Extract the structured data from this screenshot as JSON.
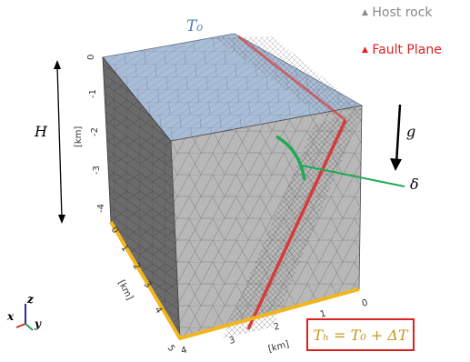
{
  "legend": {
    "host_rock": {
      "marker": "▲",
      "label": "Host rock",
      "color": "#8a8a8a"
    },
    "fault_plane": {
      "marker": "▲",
      "label": "Fault Plane",
      "color": "#e02020"
    }
  },
  "labels": {
    "top_temperature": "T₀",
    "height": "H",
    "gravity": "g",
    "dip_angle": "δ",
    "bottom_temperature_eq": "Tₕ = T₀ + ΔT",
    "unit_km": "[km]"
  },
  "axes": {
    "vertical_ticks": [
      "0",
      "-1",
      "-2",
      "-3",
      "-4"
    ],
    "y_ticks": [
      "0",
      "1",
      "2",
      "3",
      "4",
      "5"
    ],
    "x_ticks": [
      "0",
      "1",
      "2",
      "3",
      "4"
    ]
  },
  "triad": {
    "x": "x",
    "y": "y",
    "z": "z"
  },
  "colors": {
    "top_face": "#a9bdd6",
    "front_face": "#b8b8b8",
    "left_face": "#6b6b6b",
    "fault": "#d83a3a",
    "bottom_edge": "#f2b61c",
    "dip_arc": "#1faa55",
    "temperature_text": "#4a7fc0",
    "equation_text": "#c8941a",
    "equation_border": "#e02020"
  }
}
